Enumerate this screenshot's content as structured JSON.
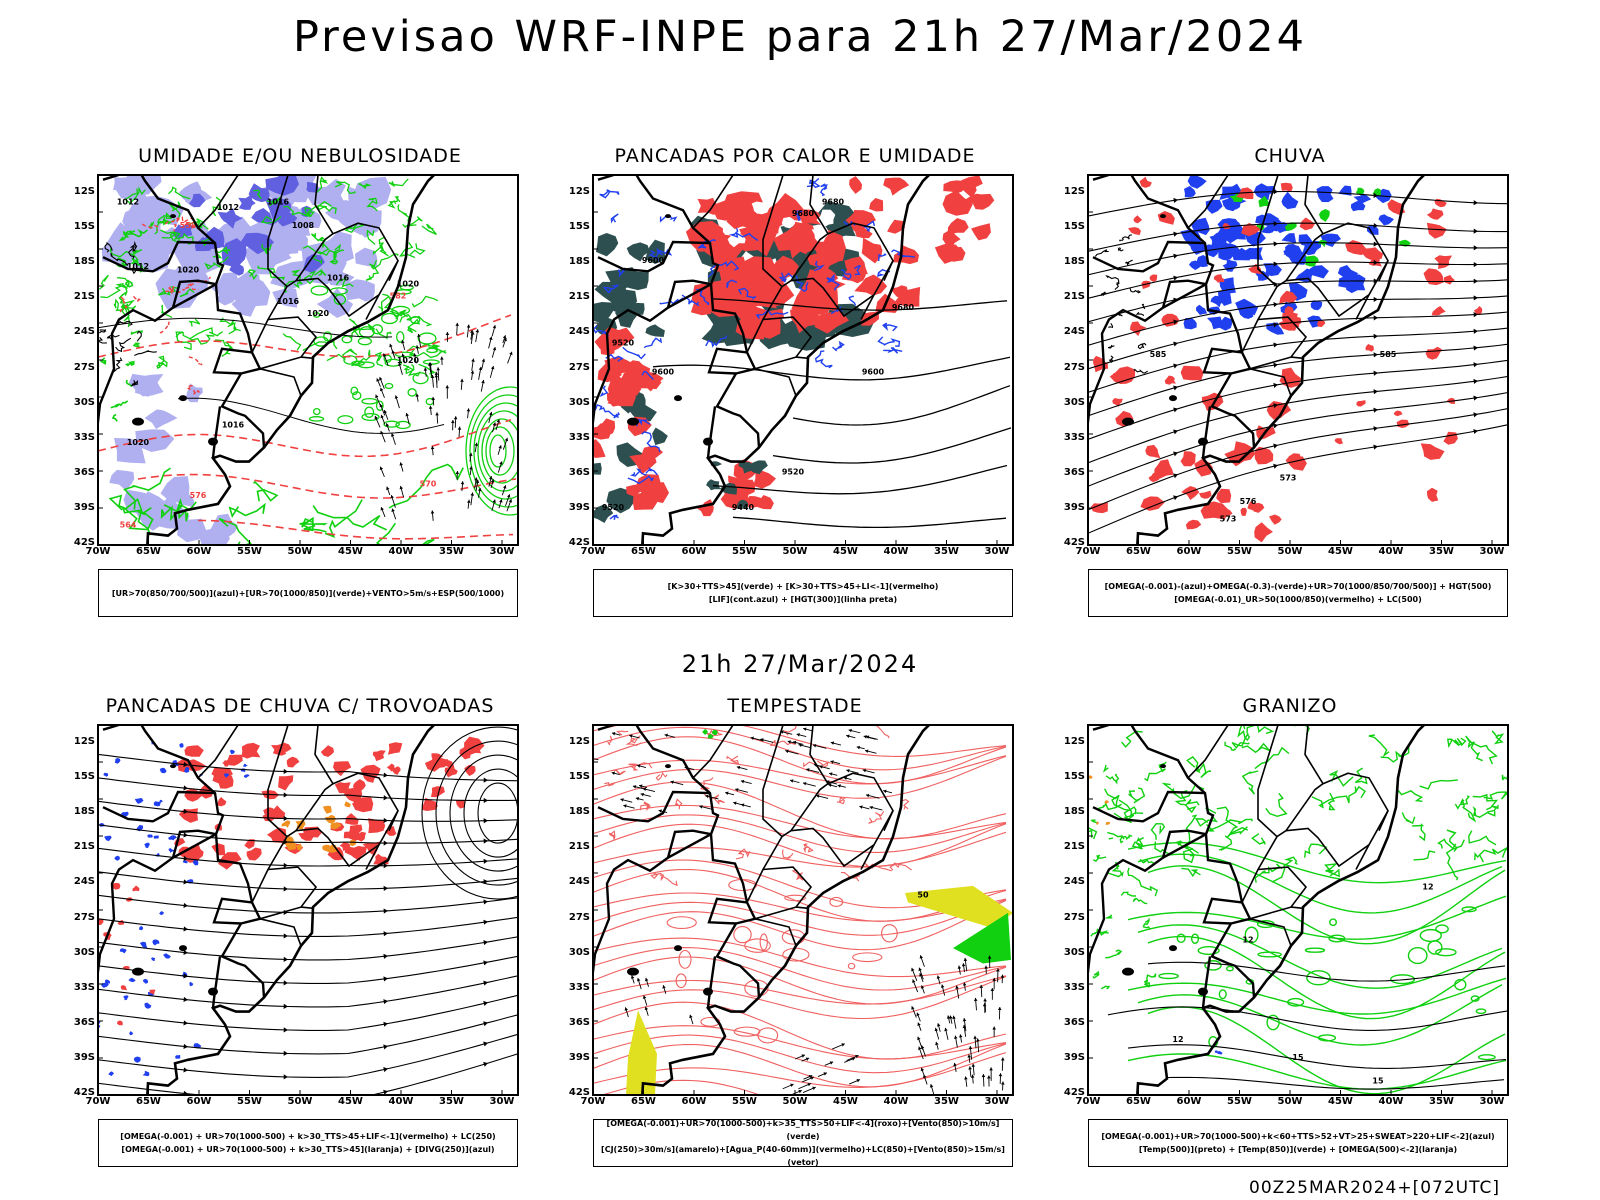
{
  "title": "Previsao WRF-INPE  para 21h 27/Mar/2024",
  "mid_date": "21h 27/Mar/2024",
  "run_label": "00Z25MAR2024+[072UTC]",
  "lat_labels": [
    "12S",
    "15S",
    "18S",
    "21S",
    "24S",
    "27S",
    "30S",
    "33S",
    "36S",
    "39S",
    "42S"
  ],
  "lon_labels": [
    "70W",
    "65W",
    "60W",
    "55W",
    "50W",
    "45W",
    "40W",
    "35W",
    "30W"
  ],
  "colors": {
    "red": "#f04040",
    "green": "#10d010",
    "blue": "#2040f0",
    "lavender": "#b0b0f0",
    "darkteal": "#2d4f4f",
    "yellow": "#e0e020",
    "orange": "#f09020"
  },
  "panels": [
    {
      "title": "UMIDADE E/OU NEBULOSIDADE",
      "legend": [
        "[UR>70(850/700/500)](azul)+[UR>70(1000/850)](verde)+VENTO>5m/s+ESP(500/1000)"
      ],
      "contour_labels": [
        "1012",
        "1012",
        "1016",
        "1008",
        "1012",
        "1020",
        "1016",
        "1020",
        "1016",
        "1020",
        "1016",
        "1020",
        "1020",
        "576",
        "570",
        "564",
        "558",
        "582"
      ]
    },
    {
      "title": "PANCADAS POR CALOR E UMIDADE",
      "legend": [
        "[K>30+TTS>45](verde)  +  [K>30+TTS>45+LI<-1](vermelho)",
        "[LIF](cont.azul)  +  [HGT(300)](linha preta)"
      ],
      "contour_labels": [
        "9680",
        "9680",
        "9600",
        "9680",
        "9600",
        "9520",
        "9600",
        "9520",
        "9440",
        "9520"
      ]
    },
    {
      "title": "CHUVA",
      "legend": [
        "[OMEGA(-0.001)-(azul)+OMEGA(-0.3)-(verde)+UR>70(1000/850/700/500)]  +  HGT(500)",
        "[OMEGA(-0.01)_UR>50(1000/850)(vermelho)  +  LC(500)"
      ],
      "contour_labels": [
        "585",
        "585",
        "573",
        "576",
        "573"
      ]
    },
    {
      "title": "PANCADAS DE CHUVA C/ TROVOADAS",
      "legend": [
        "[OMEGA(-0.001)  +  UR>70(1000-500)  +  k>30_TTS>45+LIF<-1](vermelho)  +  LC(250)",
        "[OMEGA(-0.001)  +  UR>70(1000-500)  +  k>30_TTS>45](laranja)  +  [DIVG(250)](azul)"
      ],
      "contour_labels": []
    },
    {
      "title": "TEMPESTADE",
      "legend": [
        "[OMEGA(-0.001)+UR>70(1000-500)+k>35_TTS>50+LIF<-4](roxo)+[Vento(850)>10m/s](verde)",
        "[CJ(250)>30m/s](amarelo)+[Agua_P(40-60mm)](vermelho)+LC(850)+[Vento(850)>15m/s](vetor)"
      ],
      "contour_labels": [
        "50"
      ]
    },
    {
      "title": "GRANIZO",
      "legend": [
        "[OMEGA(-0.001)+UR>70(1000-500)+k<60+TTS>52+VT>25+SWEAT>220+LIF<-2](azul)",
        "[Temp(500)](preto)  +  [Temp(850)](verde)  +  [OMEGA(500)<-2](laranja)"
      ],
      "contour_labels": [
        "12",
        "12",
        "15",
        "12",
        "15"
      ]
    }
  ]
}
